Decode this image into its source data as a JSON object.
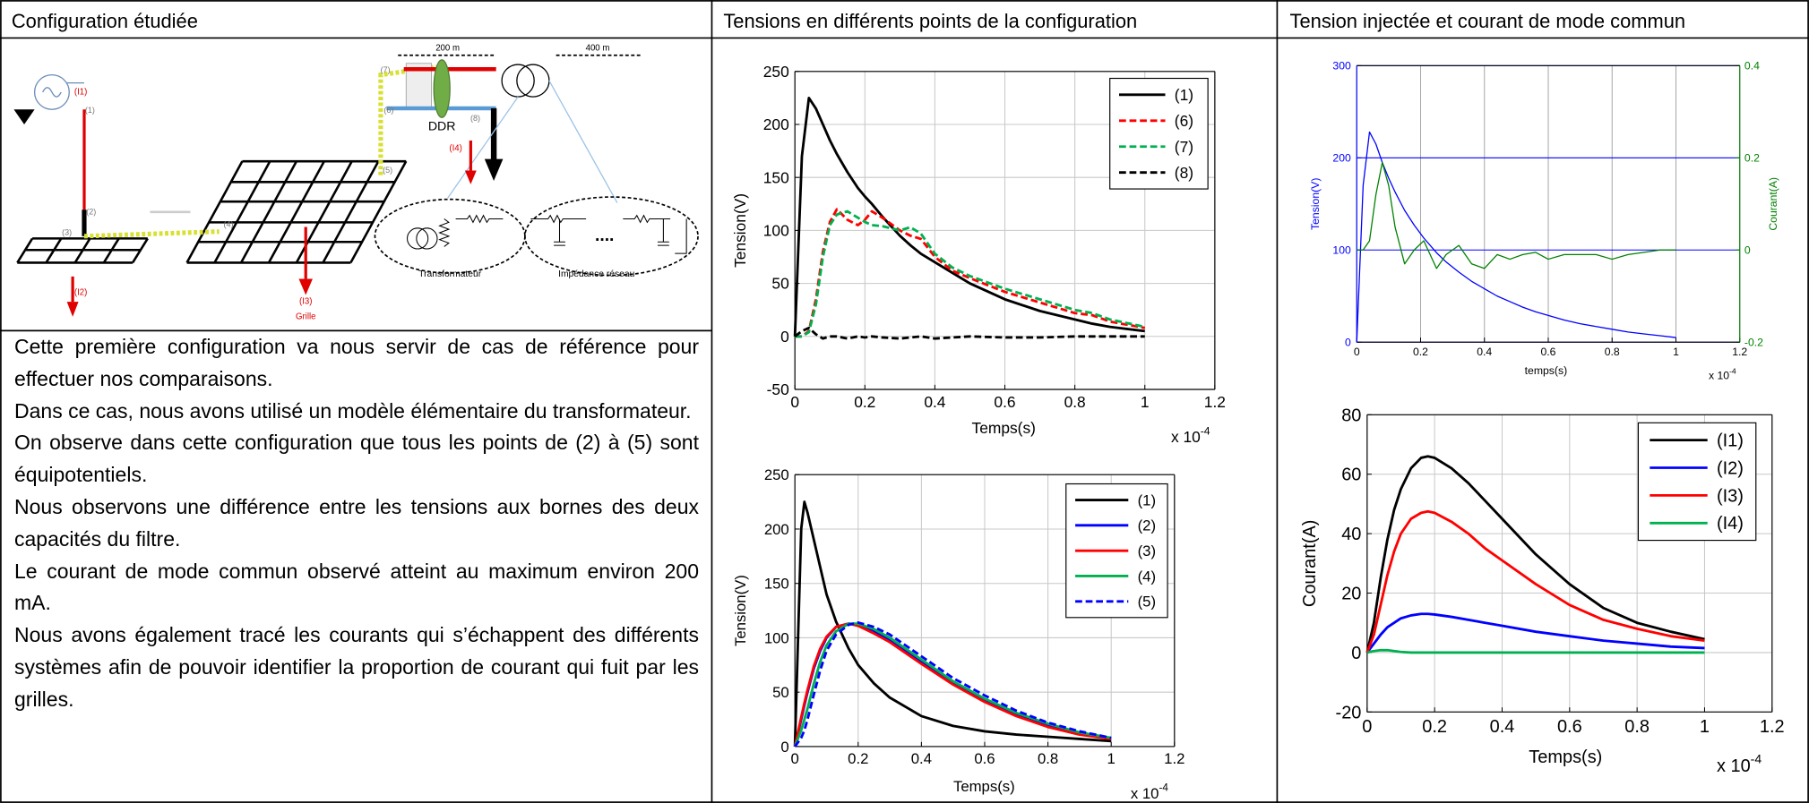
{
  "header": {
    "columns": [
      "Configuration étudiée",
      "Tensions en différents points de la configuration",
      "Tension injectée et courant de mode commun"
    ]
  },
  "diagram": {
    "labels": [
      "(I1)",
      "(1)",
      "(2)",
      "(3)",
      "(4)",
      "(5)",
      "(6)",
      "(7)",
      "(8)",
      "(I2)",
      "(I3)",
      "Grille",
      "(I4)",
      "DDR",
      "200 m",
      "400 m",
      "Transformateur",
      "Impédance réseau",
      "...."
    ]
  },
  "text": {
    "paragraphs": [
      "Cette première configuration va nous servir de cas de référence pour effectuer nos comparaisons.",
      "Dans ce cas, nous avons utilisé un modèle élémentaire du transformateur.",
      "On observe dans cette configuration que tous les points de (2) à (5) sont équipotentiels.",
      "Nous observons une différence entre les tensions aux bornes des deux capacités du filtre.",
      "Le courant de mode commun observé atteint au maximum environ 200 mA.",
      "Nous avons également tracé les courants qui s’échappent des différents systèmes afin de pouvoir identifier la proportion de courant qui fuit par les grilles."
    ]
  },
  "chart_data": [
    {
      "type": "line",
      "xlabel": "Temps(s)",
      "ylabel": "Tension(V)",
      "x_multiplier": {
        "base": "x 10",
        "exponent": "-4"
      },
      "x": [
        0,
        0.02,
        0.04,
        0.06,
        0.08,
        0.1,
        0.12,
        0.15,
        0.18,
        0.2,
        0.22,
        0.25,
        0.3,
        0.33,
        0.36,
        0.4,
        0.45,
        0.5,
        0.6,
        0.7,
        0.8,
        0.85,
        0.9,
        1.0
      ],
      "series": [
        {
          "name": "(1)",
          "color": "#000000",
          "dash": false,
          "values": [
            0,
            170,
            225,
            215,
            200,
            185,
            172,
            155,
            140,
            132,
            125,
            113,
            95,
            86,
            78,
            70,
            60,
            50,
            35,
            24,
            16,
            12,
            9,
            5
          ]
        },
        {
          "name": "(6)",
          "color": "#ff0000",
          "dash": true,
          "values": [
            0,
            0,
            5,
            35,
            80,
            108,
            120,
            110,
            105,
            110,
            118,
            112,
            100,
            95,
            92,
            75,
            62,
            55,
            42,
            32,
            22,
            20,
            14,
            8
          ]
        },
        {
          "name": "(7)",
          "color": "#00b050",
          "dash": true,
          "values": [
            0,
            0,
            4,
            30,
            75,
            105,
            115,
            118,
            112,
            108,
            105,
            104,
            100,
            103,
            97,
            78,
            65,
            57,
            45,
            35,
            25,
            22,
            16,
            9
          ]
        },
        {
          "name": "(8)",
          "color": "#000000",
          "dash": true,
          "values": [
            0,
            5,
            8,
            2,
            -2,
            0,
            0,
            -2,
            0,
            -1,
            0,
            -1,
            -2,
            -1,
            0,
            -2,
            -1,
            0,
            -1,
            -1,
            0,
            0,
            0,
            0
          ]
        }
      ],
      "xlim": [
        0,
        1.2
      ],
      "xticks": [
        0,
        0.2,
        0.4,
        0.6,
        0.8,
        1,
        1.2
      ],
      "ylim": [
        -50,
        250
      ],
      "yticks": [
        -50,
        0,
        50,
        100,
        150,
        200,
        250
      ],
      "grid": true,
      "grid_color": "#c8c8c8",
      "legend": "upper right"
    },
    {
      "type": "line",
      "xlabel": "Temps(s)",
      "ylabel": "Tension(V)",
      "x_multiplier": {
        "base": "x 10",
        "exponent": "-4"
      },
      "x": [
        0,
        0.02,
        0.03,
        0.04,
        0.06,
        0.08,
        0.1,
        0.13,
        0.17,
        0.2,
        0.25,
        0.3,
        0.4,
        0.5,
        0.6,
        0.7,
        0.8,
        0.9,
        1.0
      ],
      "series": [
        {
          "name": "(1)",
          "color": "#000000",
          "dash": false,
          "values": [
            0,
            200,
            225,
            215,
            190,
            165,
            140,
            115,
            90,
            75,
            58,
            45,
            28,
            19,
            14,
            11,
            9,
            7,
            5
          ]
        },
        {
          "name": "(2)",
          "color": "#0000ff",
          "dash": false,
          "values": [
            0,
            25,
            38,
            50,
            72,
            88,
            100,
            110,
            113,
            112,
            106,
            98,
            78,
            58,
            42,
            29,
            19,
            12,
            7
          ]
        },
        {
          "name": "(3)",
          "color": "#ff0000",
          "dash": false,
          "values": [
            0,
            27,
            40,
            52,
            74,
            90,
            101,
            110,
            113,
            111,
            104,
            96,
            76,
            57,
            41,
            28,
            18,
            11,
            7
          ]
        },
        {
          "name": "(4)",
          "color": "#00b050",
          "dash": false,
          "values": [
            0,
            15,
            25,
            35,
            58,
            78,
            93,
            106,
            113,
            113,
            108,
            100,
            80,
            60,
            44,
            31,
            21,
            13,
            8
          ]
        },
        {
          "name": "(5)",
          "color": "#0000ff",
          "dash": true,
          "values": [
            0,
            8,
            15,
            25,
            48,
            70,
            88,
            103,
            112,
            114,
            110,
            103,
            83,
            63,
            47,
            33,
            22,
            14,
            8
          ]
        }
      ],
      "xlim": [
        0,
        1.2
      ],
      "xticks": [
        0,
        0.2,
        0.4,
        0.6,
        0.8,
        1,
        1.2
      ],
      "ylim": [
        0,
        250
      ],
      "yticks": [
        0,
        50,
        100,
        150,
        200,
        250
      ],
      "grid": true,
      "grid_color": "#c8c8c8",
      "legend": "upper right"
    },
    {
      "type": "line",
      "xlabel": "temps(s)",
      "ylabel": "Tension(V)",
      "y2label": "Courant(A)",
      "x_multiplier": {
        "base": "x 10",
        "exponent": "-4"
      },
      "x": [
        0,
        0.02,
        0.04,
        0.06,
        0.08,
        0.1,
        0.12,
        0.15,
        0.18,
        0.21,
        0.25,
        0.28,
        0.32,
        0.36,
        0.4,
        0.44,
        0.48,
        0.52,
        0.56,
        0.6,
        0.65,
        0.7,
        0.75,
        0.8,
        0.85,
        0.9,
        0.95,
        1.0
      ],
      "series": [
        {
          "name": "Tension(V)",
          "color": "#0000ff",
          "dash": false,
          "values": [
            0,
            170,
            228,
            215,
            195,
            178,
            163,
            143,
            127,
            113,
            97,
            87,
            76,
            66,
            58,
            50,
            44,
            38,
            33,
            29,
            24,
            20,
            17,
            14,
            11,
            9,
            7,
            5
          ]
        },
        {
          "name": "Courant(A)",
          "color": "#008000",
          "dash": false,
          "axis": "y2",
          "values": [
            0,
            0,
            0.02,
            0.12,
            0.19,
            0.14,
            0.05,
            -0.03,
            0,
            0.02,
            -0.04,
            -0.01,
            0.01,
            -0.03,
            -0.04,
            -0.01,
            -0.02,
            -0.01,
            -0.005,
            -0.02,
            -0.01,
            -0.01,
            -0.01,
            -0.02,
            -0.01,
            -0.005,
            0,
            0
          ]
        }
      ],
      "xlim": [
        0,
        1.2
      ],
      "xticks": [
        0,
        0.2,
        0.4,
        0.6,
        0.8,
        1,
        1.2
      ],
      "ylim": [
        0,
        300
      ],
      "yticks": [
        0,
        100,
        200,
        300
      ],
      "y2lim": [
        -0.2,
        0.4
      ],
      "y2ticks": [
        -0.2,
        0,
        0.2,
        0.4
      ],
      "grid": true,
      "grid_color": "#a8a8a8",
      "ygrid_color": "#0000ff",
      "yaxis_color": "#0000ff",
      "y2axis_color": "#008000"
    },
    {
      "type": "line",
      "xlabel": "Temps(s)",
      "ylabel": "Courant(A)",
      "x_multiplier": {
        "base": "x 10",
        "exponent": "-4"
      },
      "x": [
        0,
        0.02,
        0.04,
        0.06,
        0.08,
        0.1,
        0.13,
        0.16,
        0.18,
        0.2,
        0.25,
        0.3,
        0.35,
        0.4,
        0.5,
        0.6,
        0.7,
        0.8,
        0.9,
        1.0
      ],
      "series": [
        {
          "name": "(I1)",
          "color": "#000000",
          "dash": false,
          "values": [
            0,
            10,
            25,
            38,
            48,
            55,
            62,
            65.5,
            66,
            65.5,
            62,
            57,
            51,
            45,
            33,
            23,
            15,
            10,
            7,
            4.5
          ]
        },
        {
          "name": "(I2)",
          "color": "#0000ff",
          "dash": false,
          "values": [
            0,
            3,
            6,
            8.5,
            10,
            11.5,
            12.5,
            13,
            13,
            12.8,
            12,
            11,
            10,
            9,
            7,
            5.5,
            4,
            3,
            2,
            1.5
          ]
        },
        {
          "name": "(I3)",
          "color": "#ff0000",
          "dash": false,
          "values": [
            0,
            6,
            16,
            26,
            34,
            40,
            45,
            47,
            47.5,
            47,
            44,
            40,
            35,
            31,
            23,
            16,
            11,
            8,
            5.5,
            4
          ]
        },
        {
          "name": "(I4)",
          "color": "#00b050",
          "dash": false,
          "values": [
            0,
            0.5,
            0.8,
            0.8,
            0.5,
            0.2,
            0,
            0,
            0,
            0,
            0,
            0,
            0,
            0,
            0,
            0,
            0,
            0,
            0,
            0
          ]
        }
      ],
      "xlim": [
        0,
        1.2
      ],
      "xticks": [
        0,
        0.2,
        0.4,
        0.6,
        0.8,
        1,
        1.2
      ],
      "ylim": [
        -20,
        80
      ],
      "yticks": [
        -20,
        0,
        20,
        40,
        60,
        80
      ],
      "grid": true,
      "grid_color": "#c8c8c8",
      "legend": "upper right"
    }
  ]
}
